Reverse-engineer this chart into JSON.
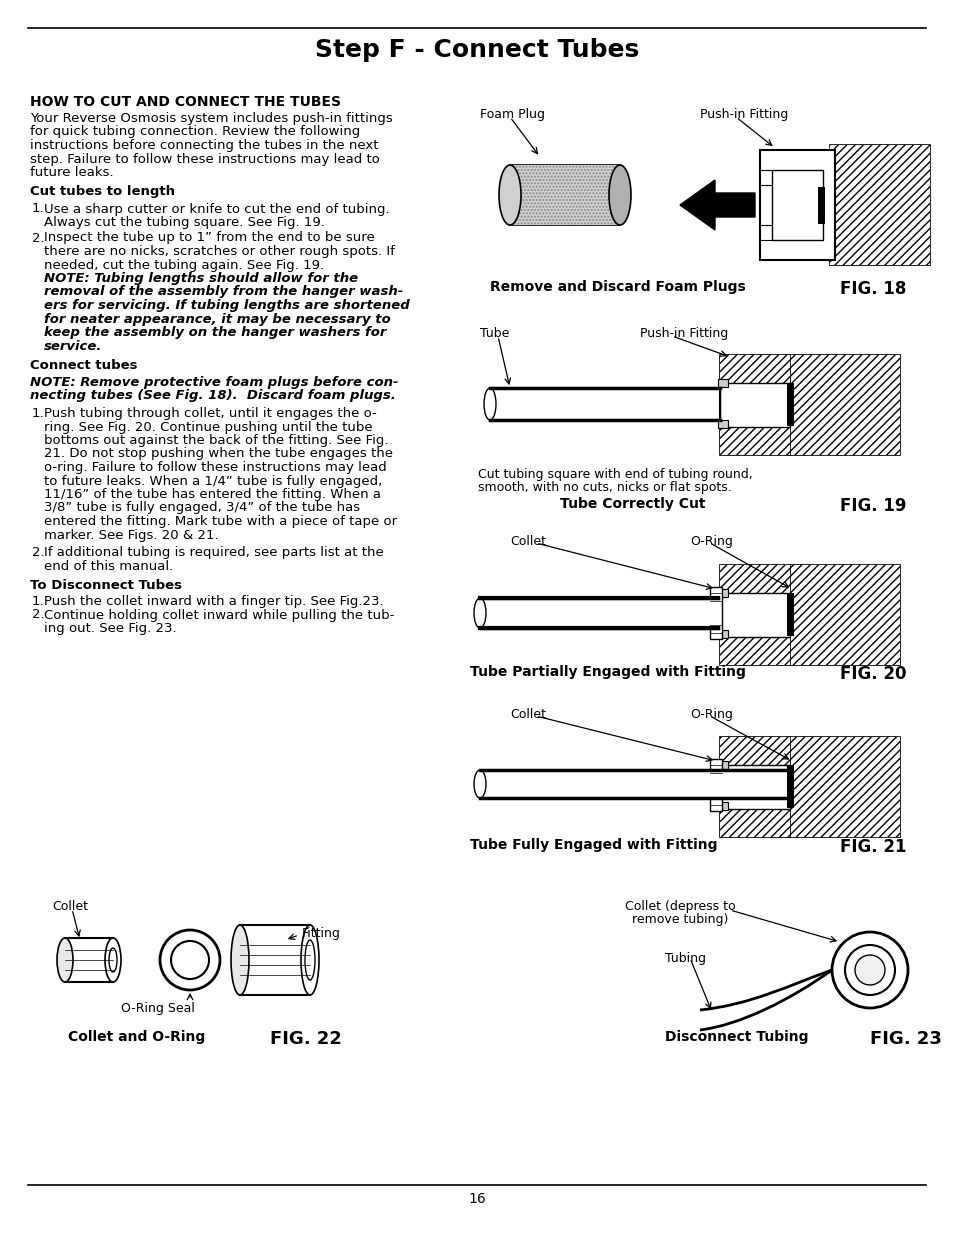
{
  "title": "Step F - Connect Tubes",
  "page_number": "16",
  "bg_color": "#ffffff",
  "text_color": "#000000",
  "section1_heading": "HOW TO CUT AND CONNECT THE TUBES",
  "intro_lines": [
    "Your Reverse Osmosis system includes push-in fittings",
    "for quick tubing connection. Review the following",
    "instructions before connecting the tubes in the next",
    "step. Failure to follow these instructions may lead to",
    "future leaks."
  ],
  "cut_heading": "Cut tubes to length",
  "cut_item1": [
    "Use a sharp cutter or knife to cut the end of tubing.",
    "Always cut the tubing square. See Fig. 19."
  ],
  "cut_item2_normal": [
    "Inspect the tube up to 1” from the end to be sure",
    "there are no nicks, scratches or other rough spots. If",
    "needed, cut the tubing again. See Fig. 19."
  ],
  "cut_item2_bold": [
    "NOTE: Tubing lengths should allow for the",
    "removal of the assembly from the hanger wash-",
    "ers for servicing. If tubing lengths are shortened",
    "for neater appearance, it may be necessary to",
    "keep the assembly on the hanger washers for",
    "service."
  ],
  "connect_heading": "Connect tubes",
  "connect_note": [
    "NOTE: Remove protective foam plugs before con-",
    "necting tubes (See Fig. 18).  Discard foam plugs."
  ],
  "connect_item1": [
    "Push tubing through collet, until it engages the o-",
    "ring. See Fig. 20. Continue pushing until the tube",
    "bottoms out against the back of the fitting. See Fig.",
    "21. Do not stop pushing when the tube engages the",
    "o-ring. Failure to follow these instructions may lead",
    "to future leaks. When a 1/4” tube is fully engaged,",
    "11/16” of the tube has entered the fitting. When a",
    "3/8” tube is fully engaged, 3/4” of the tube has",
    "entered the fitting. Mark tube with a piece of tape or",
    "marker. See Figs. 20 & 21."
  ],
  "connect_item2": [
    "If additional tubing is required, see parts list at the",
    "end of this manual."
  ],
  "disconnect_heading": "To Disconnect Tubes",
  "disconnect_item1": [
    "Push the collet inward with a finger tip. See Fig.23."
  ],
  "disconnect_item2": [
    "Continue holding collet inward while pulling the tub-",
    "ing out. See Fig. 23."
  ],
  "fig18_cap": "Remove and Discard Foam Plugs",
  "fig18_num": "FIG. 18",
  "fig19_cap": "Tube Correctly Cut",
  "fig19_num": "FIG. 19",
  "fig19_sub": [
    "Cut tubing square with end of tubing round,",
    "smooth, with no cuts, nicks or flat spots."
  ],
  "fig20_cap": "Tube Partially Engaged with Fitting",
  "fig20_num": "FIG. 20",
  "fig21_cap": "Tube Fully Engaged with Fitting",
  "fig21_num": "FIG. 21",
  "fig22_cap": "Collet and O-Ring",
  "fig22_num": "FIG. 22",
  "fig23_cap": "Disconnect Tubing",
  "fig23_num": "FIG. 23"
}
